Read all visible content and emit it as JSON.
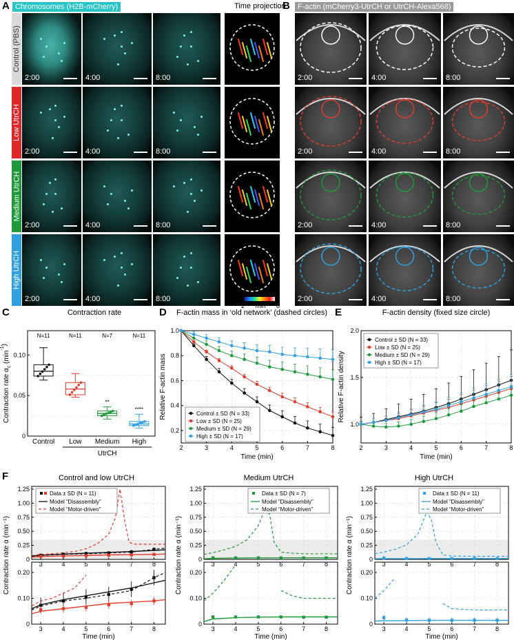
{
  "panel_labels": {
    "a": "A",
    "b": "B",
    "c": "C",
    "d": "D",
    "e": "E",
    "f": "F"
  },
  "panelA": {
    "header": "Chromosomes (H2B-mCherry)",
    "header_color": "#27c5c8",
    "time_projection_label": "Time projection",
    "rows": [
      {
        "label": "Control (PBS)",
        "color": "#d9d9d9",
        "text_color": "#333"
      },
      {
        "label": "Low UtrCH",
        "color": "#e12727"
      },
      {
        "label": "Medium UtrCH",
        "color": "#1f9a3a"
      },
      {
        "label": "High UtrCH",
        "color": "#2fa0e0"
      }
    ],
    "times": [
      "2:00",
      "4:00",
      "8:00"
    ],
    "colorbar": {
      "min": "2",
      "unit": "min",
      "max": "8"
    }
  },
  "panelB": {
    "header": "F-actin (mCherry3-UtrCH or UtrCH-Alexa568)",
    "header_color": "#9a9a9a",
    "times": [
      "2:00",
      "4:00",
      "8:00"
    ],
    "circle_colors": [
      "#ffffff",
      "#e03c2c",
      "#1f9a3a",
      "#2fa0e0"
    ]
  },
  "panelC": {
    "title": "Contraction rate",
    "ylabel": "Contraction rate α",
    "ylabel_sub": "c",
    "ylabel_unit": " (min",
    "ylabel_exp": "-1",
    "ylabel_close": ")",
    "yticks": [
      "0",
      "0.05",
      "0.10"
    ],
    "categories": [
      "Control",
      "Low",
      "Medium",
      "High"
    ],
    "group_label": "UtrCH",
    "n_labels": [
      "N=11",
      "N=11",
      "N=7",
      "N=11"
    ],
    "sig_labels": [
      "",
      "",
      "**",
      "****"
    ],
    "colors": [
      "#111111",
      "#e03c2c",
      "#1f9a3a",
      "#2fa0e0"
    ]
  },
  "panelD": {
    "title": "F-actin mass in ‘old network’ (dashed circles)",
    "xlabel": "Time (min)",
    "ylabel": "Relative F-actin mass",
    "yticks": [
      "0.2",
      "0.4",
      "0.6",
      "0.8",
      "1.0"
    ],
    "xticks": [
      "2",
      "3",
      "4",
      "5",
      "6",
      "7",
      "8"
    ],
    "legend": [
      "Control ± SD (N = 33)",
      "Low ± SD (N = 25)",
      "Medium ± SD (N = 29)",
      "High ± SD (N = 17)"
    ]
  },
  "panelE": {
    "title": "F-actin density (fixed size circle)",
    "xlabel": "Time (min)",
    "ylabel": "Relative F-actin density",
    "yticks": [
      "1.0",
      "1.5",
      "2.0"
    ],
    "xticks": [
      "2",
      "3",
      "4",
      "5",
      "6",
      "7",
      "8"
    ],
    "legend": [
      "Control ± SD (N = 33)",
      "Low ± SD (N = 25)",
      "Medium ± SD (N = 29)",
      "High ± SD (N = 17)"
    ]
  },
  "panelF": {
    "titles": [
      "Control and low UtrCH",
      "Medium UtrCH",
      "High UtrCH"
    ],
    "ylabel": "Contraction rate α (min⁻¹)",
    "xlabel": "Time (min)",
    "top_yticks": [
      "0",
      "0.25",
      "0.50",
      "0.75",
      "1.00",
      "1.25"
    ],
    "bottom_yticks": [
      "0",
      "0.10",
      "0.20"
    ],
    "xticks": [
      "3",
      "4",
      "5",
      "6",
      "7",
      "8"
    ],
    "legends": [
      {
        "data": "Data ± SD (N = 11)",
        "m1": "Model “Disassembly”",
        "m2": "Model “Motor-driven”"
      },
      {
        "data": "Data ± SD (N = 7)",
        "m1": "Model “Disassembly”",
        "m2": "Model “Motor-driven”"
      },
      {
        "data": "Data ± SD (N = 11)",
        "m1": "Model “Disassembly”",
        "m2": "Model “Motor-driven”"
      }
    ]
  },
  "chart_data": [
    {
      "type": "box",
      "title": "Contraction rate",
      "categories": [
        "Control",
        "Low",
        "Medium",
        "High"
      ],
      "series": [
        {
          "median": [
            0.08,
            0.058,
            0.028,
            0.015
          ],
          "q1": [
            0.074,
            0.051,
            0.025,
            0.013
          ],
          "q3": [
            0.088,
            0.066,
            0.031,
            0.018
          ],
          "min": [
            0.069,
            0.048,
            0.021,
            0.01
          ],
          "max": [
            0.109,
            0.077,
            0.036,
            0.027
          ]
        }
      ],
      "ylim": [
        0,
        0.13
      ]
    },
    {
      "type": "line",
      "title": "F-actin mass in ‘old network’ (dashed circles)",
      "xlabel": "Time (min)",
      "ylabel": "Relative F-actin mass",
      "xlim": [
        2,
        8
      ],
      "ylim": [
        0.1,
        1.0
      ],
      "x": [
        2,
        2.5,
        3,
        3.5,
        4,
        4.5,
        5,
        5.5,
        6,
        6.5,
        7,
        7.5,
        8
      ],
      "series": [
        {
          "name": "Control ± SD (N = 33)",
          "values": [
            1.0,
            0.88,
            0.77,
            0.67,
            0.58,
            0.5,
            0.43,
            0.36,
            0.31,
            0.26,
            0.22,
            0.19,
            0.16
          ],
          "sd": 0.05
        },
        {
          "name": "Low ± SD (N = 25)",
          "values": [
            1.0,
            0.91,
            0.83,
            0.76,
            0.7,
            0.63,
            0.57,
            0.52,
            0.47,
            0.43,
            0.39,
            0.35,
            0.31
          ],
          "sd": 0.03
        },
        {
          "name": "Medium ± SD (N = 29)",
          "values": [
            1.0,
            0.94,
            0.89,
            0.84,
            0.8,
            0.77,
            0.74,
            0.71,
            0.69,
            0.67,
            0.65,
            0.63,
            0.61
          ],
          "sd": 0.06
        },
        {
          "name": "High ± SD (N = 17)",
          "values": [
            1.0,
            0.97,
            0.94,
            0.91,
            0.88,
            0.86,
            0.84,
            0.83,
            0.81,
            0.8,
            0.79,
            0.78,
            0.77
          ],
          "sd": 0.06
        }
      ]
    },
    {
      "type": "line",
      "title": "F-actin density (fixed size circle)",
      "xlabel": "Time (min)",
      "ylabel": "Relative F-actin density",
      "xlim": [
        2,
        8
      ],
      "ylim": [
        0.8,
        2.0
      ],
      "x": [
        2,
        2.5,
        3,
        3.5,
        4,
        4.5,
        5,
        5.5,
        6,
        6.5,
        7,
        7.5,
        8
      ],
      "series": [
        {
          "name": "Control ± SD (N = 33)",
          "values": [
            1.0,
            1.02,
            1.05,
            1.08,
            1.11,
            1.14,
            1.18,
            1.22,
            1.27,
            1.32,
            1.37,
            1.42,
            1.47
          ],
          "sd": 0.25
        },
        {
          "name": "Low ± SD (N = 25)",
          "values": [
            1.0,
            1.02,
            1.04,
            1.06,
            1.09,
            1.12,
            1.15,
            1.18,
            1.22,
            1.26,
            1.3,
            1.34,
            1.38
          ],
          "sd": 0.1
        },
        {
          "name": "Medium ± SD (N = 29)",
          "values": [
            1.0,
            0.98,
            0.97,
            0.98,
            1.0,
            1.03,
            1.06,
            1.1,
            1.14,
            1.19,
            1.23,
            1.27,
            1.31
          ],
          "sd": 0.08
        },
        {
          "name": "High ± SD (N = 17)",
          "values": [
            1.0,
            1.02,
            1.04,
            1.07,
            1.1,
            1.13,
            1.16,
            1.2,
            1.24,
            1.28,
            1.32,
            1.36,
            1.4
          ],
          "sd": 0.1
        }
      ]
    },
    {
      "type": "line",
      "title": "Control and low UtrCH",
      "xlabel": "Time (min)",
      "ylabel": "Contraction rate α (min⁻¹)",
      "xlim": [
        2.6,
        8.5
      ],
      "data_x": [
        3,
        4,
        5,
        6,
        7,
        8
      ],
      "series": [
        {
          "name": "Data ± SD (N = 11)",
          "color": "#111111",
          "values": [
            0.073,
            0.09,
            0.105,
            0.115,
            0.135,
            0.18
          ],
          "sd": 0.03
        },
        {
          "name": "Data ± SD (N = 11)",
          "color": "#e03c2c",
          "values": [
            0.055,
            0.06,
            0.065,
            0.075,
            0.08,
            0.09
          ],
          "sd": 0.015
        }
      ],
      "model_disassembly_black": {
        "x": [
          2.6,
          3,
          4,
          5,
          6,
          7,
          8,
          8.5
        ],
        "y": [
          0.06,
          0.075,
          0.095,
          0.11,
          0.125,
          0.14,
          0.16,
          0.17
        ]
      },
      "model_disassembly_red": {
        "x": [
          2.6,
          3,
          4,
          5,
          6,
          7,
          8,
          8.5
        ],
        "y": [
          0.04,
          0.05,
          0.06,
          0.07,
          0.08,
          0.085,
          0.09,
          0.095
        ]
      },
      "model_motor_black": {
        "x": [
          2.6,
          3,
          4,
          5,
          6,
          7,
          8,
          8.5
        ],
        "y": [
          0.055,
          0.07,
          0.09,
          0.1,
          0.115,
          0.13,
          0.18,
          0.2
        ]
      },
      "model_motor_red": {
        "x": [
          2.6,
          3,
          3.5,
          4,
          4.5,
          5,
          5.5,
          6,
          6.3,
          6.5,
          6.7,
          6.9,
          7.2,
          8,
          8.5
        ],
        "y": [
          0.07,
          0.09,
          0.1,
          0.12,
          0.14,
          0.19,
          0.28,
          0.45,
          0.75,
          1.25,
          0.7,
          0.3,
          0.27,
          0.27,
          0.27
        ]
      }
    },
    {
      "type": "line",
      "title": "Medium UtrCH",
      "xlabel": "Time (min)",
      "ylabel": "Contraction rate α (min⁻¹)",
      "xlim": [
        2.6,
        8.5
      ],
      "data_x": [
        3,
        4,
        5,
        6,
        7,
        8
      ],
      "series": [
        {
          "name": "Data ± SD (N = 7)",
          "color": "#1f9a3a",
          "values": [
            0.028,
            0.028,
            0.028,
            0.028,
            0.027,
            0.027
          ],
          "sd": 0.005
        }
      ],
      "model_disassembly": {
        "x": [
          2.6,
          3,
          4,
          5,
          6,
          7,
          8,
          8.5
        ],
        "y": [
          0.01,
          0.02,
          0.025,
          0.027,
          0.028,
          0.028,
          0.028,
          0.028
        ]
      },
      "model_motor": {
        "x": [
          2.6,
          3,
          3.5,
          4,
          4.5,
          5,
          5.3,
          5.5,
          5.7,
          6,
          6.5,
          7,
          8,
          8.5
        ],
        "y": [
          0.09,
          0.12,
          0.17,
          0.23,
          0.35,
          0.6,
          0.9,
          0.8,
          0.3,
          0.13,
          0.11,
          0.1,
          0.1,
          0.1
        ]
      }
    },
    {
      "type": "line",
      "title": "High UtrCH",
      "xlabel": "Time (min)",
      "ylabel": "Contraction rate α (min⁻¹)",
      "xlim": [
        2.6,
        8.5
      ],
      "data_x": [
        3,
        4,
        5,
        6,
        7,
        8
      ],
      "series": [
        {
          "name": "Data ± SD (N = 11)",
          "color": "#2fa0e0",
          "values": [
            0.025,
            0.016,
            0.015,
            0.015,
            0.015,
            0.015
          ],
          "sd": 0.01
        }
      ],
      "model_disassembly": {
        "x": [
          2.6,
          3,
          4,
          5,
          6,
          7,
          8,
          8.5
        ],
        "y": [
          0.012,
          0.013,
          0.014,
          0.015,
          0.015,
          0.015,
          0.015,
          0.015
        ]
      },
      "model_motor": {
        "x": [
          2.6,
          3,
          3.5,
          4,
          4.5,
          4.9,
          5.1,
          5.3,
          5.6,
          6,
          7,
          8,
          8.5
        ],
        "y": [
          0.1,
          0.13,
          0.18,
          0.26,
          0.45,
          0.85,
          0.7,
          0.3,
          0.08,
          0.06,
          0.055,
          0.055,
          0.055
        ]
      }
    }
  ]
}
